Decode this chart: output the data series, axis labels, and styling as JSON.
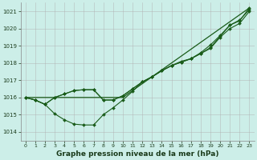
{
  "bg_color": "#cceee8",
  "grid_color": "#b0b0b0",
  "line_color": "#1a5c1a",
  "marker_color": "#1a5c1a",
  "xlabel": "Graphe pression niveau de la mer (hPa)",
  "xlabel_fontsize": 6.5,
  "ylim": [
    1013.5,
    1021.5
  ],
  "xlim": [
    -0.5,
    23.5
  ],
  "yticks": [
    1014,
    1015,
    1016,
    1017,
    1018,
    1019,
    1020,
    1021
  ],
  "xticks": [
    0,
    1,
    2,
    3,
    4,
    5,
    6,
    7,
    8,
    9,
    10,
    11,
    12,
    13,
    14,
    15,
    16,
    17,
    18,
    19,
    20,
    21,
    22,
    23
  ],
  "series1_x": [
    0,
    1,
    2,
    3,
    4,
    5,
    6,
    7,
    8,
    9,
    10,
    11,
    12,
    13,
    14,
    15,
    16,
    17,
    18,
    19,
    20,
    21,
    22,
    23
  ],
  "series1_y": [
    1016.0,
    1015.85,
    1015.6,
    1015.05,
    1014.7,
    1014.45,
    1014.4,
    1014.4,
    1015.0,
    1015.4,
    1015.85,
    1016.35,
    1016.9,
    1017.2,
    1017.55,
    1017.85,
    1018.1,
    1018.25,
    1018.6,
    1019.05,
    1019.6,
    1020.2,
    1020.45,
    1021.2
  ],
  "series2_x": [
    0,
    1,
    2,
    3,
    4,
    5,
    6,
    7,
    8,
    9,
    10,
    11,
    12,
    13,
    14,
    15,
    16,
    17,
    18,
    19,
    20,
    21,
    22,
    23
  ],
  "series2_y": [
    1016.0,
    1015.85,
    1015.6,
    1016.0,
    1016.2,
    1016.4,
    1016.45,
    1016.45,
    1015.85,
    1015.85,
    1016.1,
    1016.5,
    1016.9,
    1017.2,
    1017.55,
    1017.85,
    1018.05,
    1018.25,
    1018.55,
    1018.9,
    1019.55,
    1020.2,
    1020.5,
    1021.1
  ],
  "series3_x": [
    0,
    1,
    2,
    3,
    4,
    5,
    6,
    7,
    8,
    9,
    10,
    11,
    12,
    13,
    14,
    15,
    16,
    17,
    18,
    19,
    20,
    21,
    22,
    23
  ],
  "series3_y": [
    1016.0,
    1015.85,
    1015.6,
    1016.0,
    1016.2,
    1016.4,
    1016.45,
    1016.45,
    1015.85,
    1015.85,
    1016.1,
    1016.5,
    1016.9,
    1017.2,
    1017.55,
    1017.85,
    1018.05,
    1018.25,
    1018.55,
    1018.85,
    1019.5,
    1020.0,
    1020.3,
    1021.0
  ],
  "series4_x": [
    0,
    3,
    10,
    23
  ],
  "series4_y": [
    1016.0,
    1016.0,
    1016.0,
    1021.2
  ]
}
